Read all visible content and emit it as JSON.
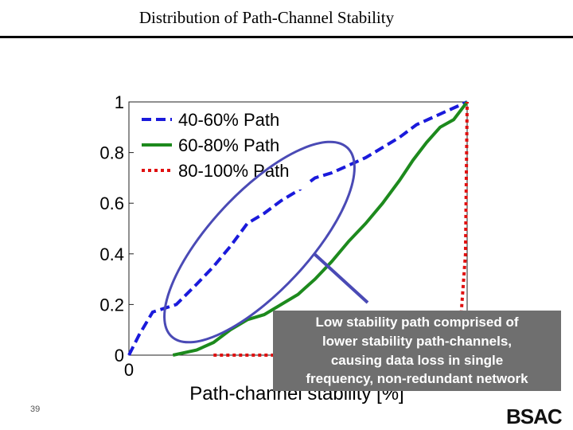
{
  "slide": {
    "title": "Distribution of Path-Channel Stability",
    "number": "39",
    "logo": "BSAC"
  },
  "chart_data": {
    "type": "line",
    "title": "",
    "xlabel": "Path-channel stability [%]",
    "ylabel": "",
    "xlim": [
      0,
      100
    ],
    "ylim": [
      0,
      1
    ],
    "y_ticks": [
      "0",
      "0.2",
      "0.4",
      "0.6",
      "0.8",
      "1"
    ],
    "x_ticks": [
      "0"
    ],
    "grid": false,
    "legend_position": "top-left",
    "series": [
      {
        "name": "40-60% Path",
        "color": "#1a1adb",
        "style": "dashed",
        "x": [
          0,
          3,
          7,
          14,
          20,
          25,
          30,
          35,
          40,
          45,
          50,
          55,
          60,
          65,
          70,
          75,
          80,
          85,
          90,
          95,
          100
        ],
        "y": [
          0,
          0.08,
          0.17,
          0.2,
          0.28,
          0.35,
          0.43,
          0.52,
          0.56,
          0.61,
          0.65,
          0.7,
          0.72,
          0.75,
          0.78,
          0.82,
          0.86,
          0.91,
          0.94,
          0.97,
          1.0
        ]
      },
      {
        "name": "60-80% Path",
        "color": "#1d8a1d",
        "style": "solid",
        "x": [
          13,
          20,
          25,
          30,
          35,
          40,
          45,
          50,
          55,
          60,
          65,
          70,
          75,
          80,
          84,
          88,
          92,
          96,
          100
        ],
        "y": [
          0.0,
          0.02,
          0.05,
          0.1,
          0.14,
          0.16,
          0.2,
          0.24,
          0.3,
          0.37,
          0.45,
          0.52,
          0.6,
          0.69,
          0.77,
          0.84,
          0.9,
          0.93,
          1.0
        ]
      },
      {
        "name": "80-100% Path",
        "color": "#e01010",
        "style": "dotted",
        "x": [
          25,
          40,
          60,
          80,
          90,
          95,
          98,
          99.5,
          100
        ],
        "y": [
          0,
          0,
          0,
          0,
          0.01,
          0.03,
          0.12,
          0.4,
          1.0
        ]
      }
    ]
  },
  "callout": {
    "lines": [
      "Low stability path comprised of",
      "lower stability path-channels,",
      "causing data loss in single",
      "frequency, non-redundant network"
    ]
  }
}
